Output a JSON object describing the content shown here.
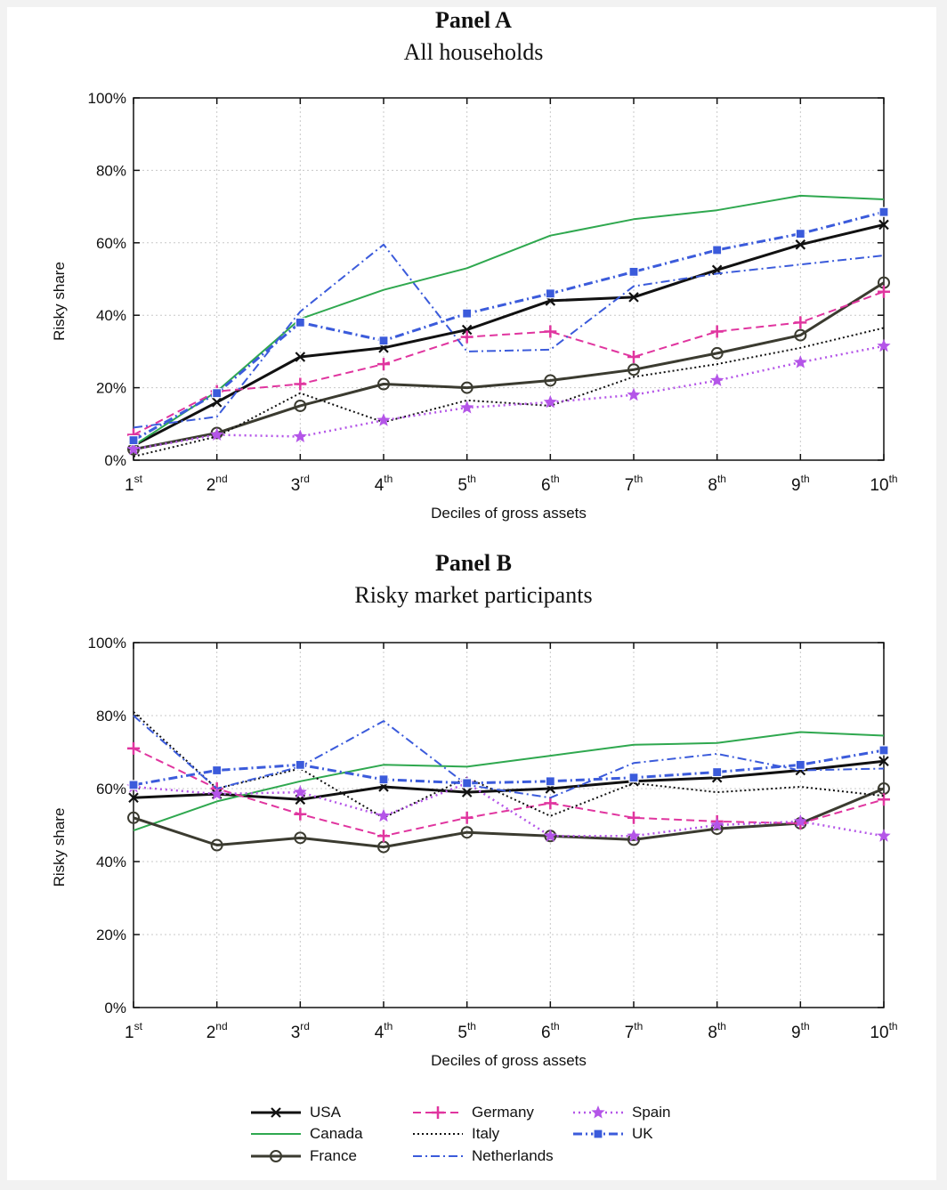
{
  "chart_data": [
    {
      "type": "line",
      "title": "Panel A",
      "subtitle": "All households",
      "xlabel": "Deciles of gross assets",
      "ylabel": "Risky share",
      "ylim": [
        0,
        100
      ],
      "yticks": [
        "0%",
        "20%",
        "40%",
        "60%",
        "80%",
        "100%"
      ],
      "categories": [
        "1",
        "2",
        "3",
        "4",
        "5",
        "6",
        "7",
        "8",
        "9",
        "10"
      ],
      "category_suffixes": [
        "st",
        "nd",
        "rd",
        "th",
        "th",
        "th",
        "th",
        "th",
        "th",
        "th"
      ],
      "grid": true,
      "series": [
        {
          "name": "USA",
          "values": [
            4,
            16,
            28.5,
            31,
            36,
            44,
            45,
            52.5,
            59.5,
            65
          ]
        },
        {
          "name": "Canada",
          "values": [
            4,
            19,
            39,
            47,
            53,
            62,
            66.5,
            69,
            73,
            72
          ]
        },
        {
          "name": "France",
          "values": [
            3,
            7.5,
            15,
            21,
            20,
            22,
            25,
            29.5,
            34.5,
            49
          ]
        },
        {
          "name": "Germany",
          "values": [
            7,
            19,
            21,
            26.5,
            34,
            35.5,
            28.5,
            35.5,
            38,
            46.5
          ]
        },
        {
          "name": "Italy",
          "values": [
            1,
            6.5,
            18.5,
            10.5,
            16.5,
            15,
            23,
            26.5,
            31,
            36.5
          ]
        },
        {
          "name": "Netherlands",
          "values": [
            9,
            12,
            41,
            59.5,
            30,
            30.5,
            48,
            51.5,
            54,
            56.5
          ]
        },
        {
          "name": "Spain",
          "values": [
            3,
            7,
            6.5,
            11,
            14.5,
            16,
            18,
            22,
            27,
            31.5
          ]
        },
        {
          "name": "UK",
          "values": [
            5.5,
            18.5,
            38,
            33,
            40.5,
            46,
            52,
            58,
            62.5,
            68.5
          ]
        }
      ]
    },
    {
      "type": "line",
      "title": "Panel B",
      "subtitle": "Risky market participants",
      "xlabel": "Deciles of gross assets",
      "ylabel": "Risky share",
      "ylim": [
        0,
        100
      ],
      "yticks": [
        "0%",
        "20%",
        "40%",
        "60%",
        "80%",
        "100%"
      ],
      "categories": [
        "1",
        "2",
        "3",
        "4",
        "5",
        "6",
        "7",
        "8",
        "9",
        "10"
      ],
      "category_suffixes": [
        "st",
        "nd",
        "rd",
        "th",
        "th",
        "th",
        "th",
        "th",
        "th",
        "th"
      ],
      "grid": true,
      "series": [
        {
          "name": "USA",
          "values": [
            57.5,
            58.5,
            57,
            60.5,
            59,
            60,
            62,
            63,
            65,
            67.5
          ]
        },
        {
          "name": "Canada",
          "values": [
            48.5,
            56.5,
            62,
            66.5,
            66,
            69,
            72,
            72.5,
            75.5,
            74.5
          ]
        },
        {
          "name": "France",
          "values": [
            52,
            44.5,
            46.5,
            44,
            48,
            47,
            46,
            49,
            50.5,
            60
          ]
        },
        {
          "name": "Germany",
          "values": [
            71,
            60,
            53,
            47,
            52,
            56,
            52,
            51,
            50.5,
            57
          ]
        },
        {
          "name": "Italy",
          "values": [
            81,
            60,
            65.5,
            52,
            63,
            52.5,
            61.5,
            59,
            60.5,
            58
          ]
        },
        {
          "name": "Netherlands",
          "values": [
            80,
            60,
            66,
            78.5,
            61,
            57.5,
            67,
            69.5,
            65,
            65.5
          ]
        },
        {
          "name": "Spain",
          "values": [
            60.5,
            58.5,
            59,
            52.5,
            61.5,
            47,
            47,
            50,
            51,
            47
          ]
        },
        {
          "name": "UK",
          "values": [
            61,
            65,
            66.5,
            62.5,
            61.5,
            62,
            63,
            64.5,
            66.5,
            70.5
          ]
        }
      ]
    }
  ],
  "legend": [
    "USA",
    "Canada",
    "France",
    "Germany",
    "Italy",
    "Netherlands",
    "Spain",
    "UK"
  ],
  "styles": {
    "USA": {
      "color": "#111111",
      "dash": "",
      "marker": "x",
      "width": 3
    },
    "Canada": {
      "color": "#2fa84f",
      "dash": "",
      "marker": "none",
      "width": 2
    },
    "France": {
      "color": "#3b3b30",
      "dash": "",
      "marker": "circle",
      "width": 3
    },
    "Germany": {
      "color": "#e0359f",
      "dash": "9 5",
      "marker": "plus",
      "width": 2
    },
    "Italy": {
      "color": "#111111",
      "dash": "2 3",
      "marker": "none",
      "width": 2
    },
    "Netherlands": {
      "color": "#3b5bdb",
      "dash": "10 4 2 4",
      "marker": "none",
      "width": 2
    },
    "Spain": {
      "color": "#b455e8",
      "dash": "2 4",
      "marker": "star",
      "width": 2.5
    },
    "UK": {
      "color": "#3b5bdb",
      "dash": "10 4 2 4",
      "marker": "square",
      "width": 3
    }
  }
}
